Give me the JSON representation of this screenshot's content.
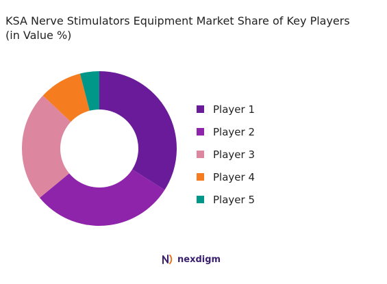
{
  "chart_data": {
    "type": "pie",
    "donut": true,
    "title_lines": [
      "KSA Nerve Stimulators Equipment Market Share of Key Players",
      "(in Value %)"
    ],
    "slices": [
      {
        "label": "Player 1",
        "value": 34,
        "color": "#6a1b9a"
      },
      {
        "label": "Player 2",
        "value": 30,
        "color": "#8e24aa"
      },
      {
        "label": "Player 3",
        "value": 23,
        "color": "#dc86a0"
      },
      {
        "label": "Player 4",
        "value": 9,
        "color": "#f57c1f"
      },
      {
        "label": "Player 5",
        "value": 4,
        "color": "#009688"
      }
    ],
    "legend_position": "right"
  },
  "brand": {
    "name": "nexdigm",
    "icon": "nexdigm-logo-icon"
  }
}
